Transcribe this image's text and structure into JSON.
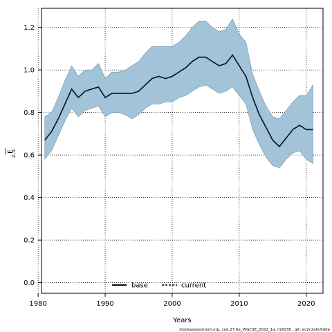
{
  "chart_data": {
    "type": "area",
    "xlabel": "Years",
    "ylabel": "F",
    "ylabel_sub": "2–5",
    "xlim": [
      1980.5,
      2022.5
    ],
    "ylim": [
      -0.05,
      1.29
    ],
    "x_ticks": [
      1980,
      1990,
      2000,
      2010,
      2020
    ],
    "y_ticks": [
      "0.0",
      "0.2",
      "0.4",
      "0.6",
      "0.8",
      "1.0",
      "1.2"
    ],
    "grid": true,
    "legend_placement": "bottom-center",
    "colors": {
      "band": "#a3c4d8",
      "band_edge": "#6a8ea3",
      "line": "#000000",
      "grid": "#000000"
    },
    "x": [
      1981,
      1982,
      1983,
      1984,
      1985,
      1986,
      1987,
      1988,
      1989,
      1990,
      1991,
      1992,
      1993,
      1994,
      1995,
      1996,
      1997,
      1998,
      1999,
      2000,
      2001,
      2002,
      2003,
      2004,
      2005,
      2006,
      2007,
      2008,
      2009,
      2010,
      2011,
      2012,
      2013,
      2014,
      2015,
      2016,
      2017,
      2018,
      2019,
      2020,
      2021
    ],
    "series": [
      {
        "name": "base",
        "style": "solid",
        "values": [
          0.67,
          0.71,
          0.77,
          0.84,
          0.91,
          0.87,
          0.9,
          0.91,
          0.92,
          0.87,
          0.89,
          0.89,
          0.89,
          0.89,
          0.9,
          0.93,
          0.96,
          0.97,
          0.96,
          0.97,
          0.99,
          1.01,
          1.04,
          1.06,
          1.06,
          1.04,
          1.02,
          1.03,
          1.07,
          1.02,
          0.97,
          0.87,
          0.79,
          0.73,
          0.67,
          0.64,
          0.68,
          0.72,
          0.74,
          0.72,
          0.72
        ]
      },
      {
        "name": "current",
        "style": "dashed",
        "values": [
          0.67,
          0.71,
          0.77,
          0.84,
          0.91,
          0.87,
          0.9,
          0.91,
          0.92,
          0.87,
          0.89,
          0.89,
          0.89,
          0.89,
          0.9,
          0.93,
          0.96,
          0.97,
          0.96,
          0.97,
          0.99,
          1.01,
          1.04,
          1.06,
          1.06,
          1.04,
          1.02,
          1.03,
          1.07,
          1.02,
          0.97,
          0.87,
          0.79,
          0.73,
          0.67,
          0.64,
          0.68,
          0.72,
          0.74,
          0.72,
          0.72
        ]
      }
    ],
    "band": {
      "upper": [
        0.78,
        0.8,
        0.87,
        0.95,
        1.02,
        0.97,
        1.0,
        1.0,
        1.03,
        0.96,
        0.99,
        0.99,
        1.0,
        1.02,
        1.04,
        1.08,
        1.11,
        1.11,
        1.11,
        1.11,
        1.13,
        1.16,
        1.2,
        1.23,
        1.23,
        1.2,
        1.18,
        1.19,
        1.24,
        1.17,
        1.13,
        0.98,
        0.9,
        0.83,
        0.78,
        0.77,
        0.81,
        0.85,
        0.88,
        0.88,
        0.93
      ],
      "lower": [
        0.58,
        0.62,
        0.69,
        0.76,
        0.82,
        0.78,
        0.81,
        0.82,
        0.83,
        0.78,
        0.8,
        0.8,
        0.79,
        0.77,
        0.79,
        0.82,
        0.84,
        0.84,
        0.85,
        0.85,
        0.87,
        0.88,
        0.9,
        0.92,
        0.93,
        0.91,
        0.89,
        0.9,
        0.92,
        0.88,
        0.84,
        0.72,
        0.65,
        0.59,
        0.55,
        0.54,
        0.58,
        0.61,
        0.62,
        0.58,
        0.56
      ]
    },
    "footnote": "stockassessment.org,  cod.27.6a_WGCSE_2022_1a,  r16038 ,  git: ec2c2a0c6dde"
  }
}
